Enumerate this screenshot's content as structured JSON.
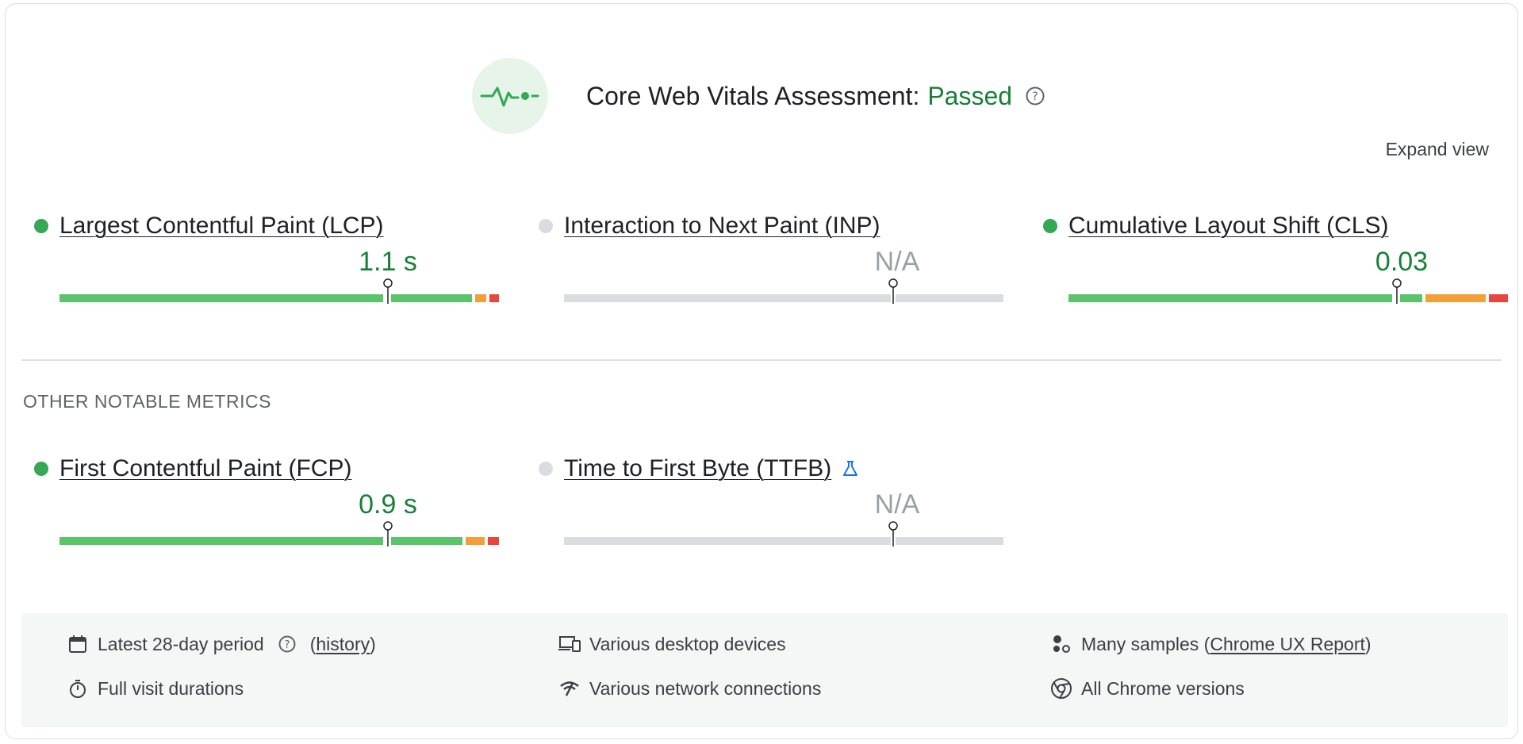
{
  "header": {
    "title": "Core Web Vitals Assessment:",
    "status": "Passed",
    "expand_label": "Expand view"
  },
  "core_metrics": [
    {
      "label": "Largest Contentful Paint (LCP)",
      "value": "1.1 s",
      "rating": "good"
    },
    {
      "label": "Interaction to Next Paint (INP)",
      "value": "N/A",
      "rating": "na"
    },
    {
      "label": "Cumulative Layout Shift (CLS)",
      "value": "0.03",
      "rating": "good"
    }
  ],
  "other_section_label": "OTHER NOTABLE METRICS",
  "other_metrics": [
    {
      "label": "First Contentful Paint (FCP)",
      "value": "0.9 s",
      "rating": "good"
    },
    {
      "label": "Time to First Byte (TTFB)",
      "value": "N/A",
      "rating": "na",
      "experimental": true
    }
  ],
  "footer": {
    "period": "Latest 28-day period",
    "history_open": "(",
    "history_link": "history",
    "history_close": ")",
    "durations": "Full visit durations",
    "devices": "Various desktop devices",
    "network": "Various network connections",
    "samples_prefix": "Many samples (",
    "samples_link": "Chrome UX Report",
    "samples_suffix": ")",
    "versions": "All Chrome versions"
  },
  "colors": {
    "good": "#34a853",
    "needs_improvement": "#f29f37",
    "poor": "#e8453c",
    "na": "#dadce0",
    "accent_blue": "#1a73e8"
  }
}
